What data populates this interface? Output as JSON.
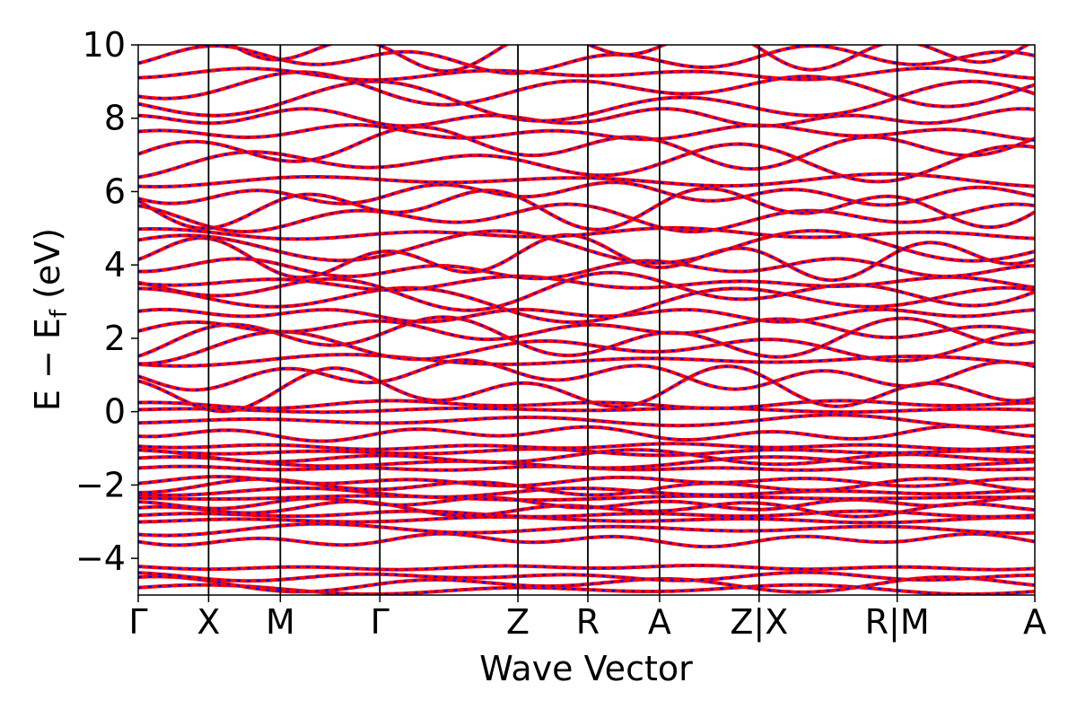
{
  "chart_data": {
    "type": "line",
    "title": "",
    "xlabel": "Wave Vector",
    "ylabel": "E − E",
    "ylabel_sub": "f",
    "ylabel_unit": " (eV)",
    "ylim": [
      -5,
      10
    ],
    "yticks": [
      {
        "value": 10,
        "label": "10"
      },
      {
        "value": 8,
        "label": "8"
      },
      {
        "value": 6,
        "label": "6"
      },
      {
        "value": 4,
        "label": "4"
      },
      {
        "value": 2,
        "label": "2"
      },
      {
        "value": 0,
        "label": "0"
      },
      {
        "value": -2,
        "label": "−2"
      },
      {
        "value": -4,
        "label": "−4"
      }
    ],
    "k_points": [
      {
        "position": 0.0,
        "label": "Γ"
      },
      {
        "position": 0.0785,
        "label": "X"
      },
      {
        "position": 0.1585,
        "label": "M"
      },
      {
        "position": 0.2695,
        "label": "Γ"
      },
      {
        "position": 0.4235,
        "label": "Z"
      },
      {
        "position": 0.5015,
        "label": "R"
      },
      {
        "position": 0.5815,
        "label": "A"
      },
      {
        "position": 0.6925,
        "label": "Z|X"
      },
      {
        "position": 0.8465,
        "label": "R|M"
      },
      {
        "position": 1.0,
        "label": "A"
      }
    ],
    "grid": false,
    "legend": "none",
    "series": [
      {
        "style": "solid",
        "color": "#ff0000"
      },
      {
        "style": "dashed",
        "color": "#0000ff"
      }
    ],
    "bands_energy_levels": [
      -4.85,
      -4.7,
      -4.5,
      -4.25,
      -3.5,
      -3.2,
      -2.95,
      -2.8,
      -2.65,
      -2.5,
      -2.35,
      -2.2,
      -2.05,
      -1.9,
      -1.55,
      -1.4,
      -1.25,
      -1.1,
      -0.95,
      -0.6,
      -0.25,
      0.05,
      0.2,
      0.6,
      1.0,
      1.4,
      1.75,
      2.0,
      2.25,
      2.65,
      3.0,
      3.3,
      3.5,
      3.9,
      4.2,
      4.5,
      4.85,
      5.3,
      5.6,
      5.95,
      6.3,
      6.8,
      7.2,
      7.6,
      8.0,
      8.4,
      8.8,
      9.2,
      9.6,
      9.9
    ]
  }
}
